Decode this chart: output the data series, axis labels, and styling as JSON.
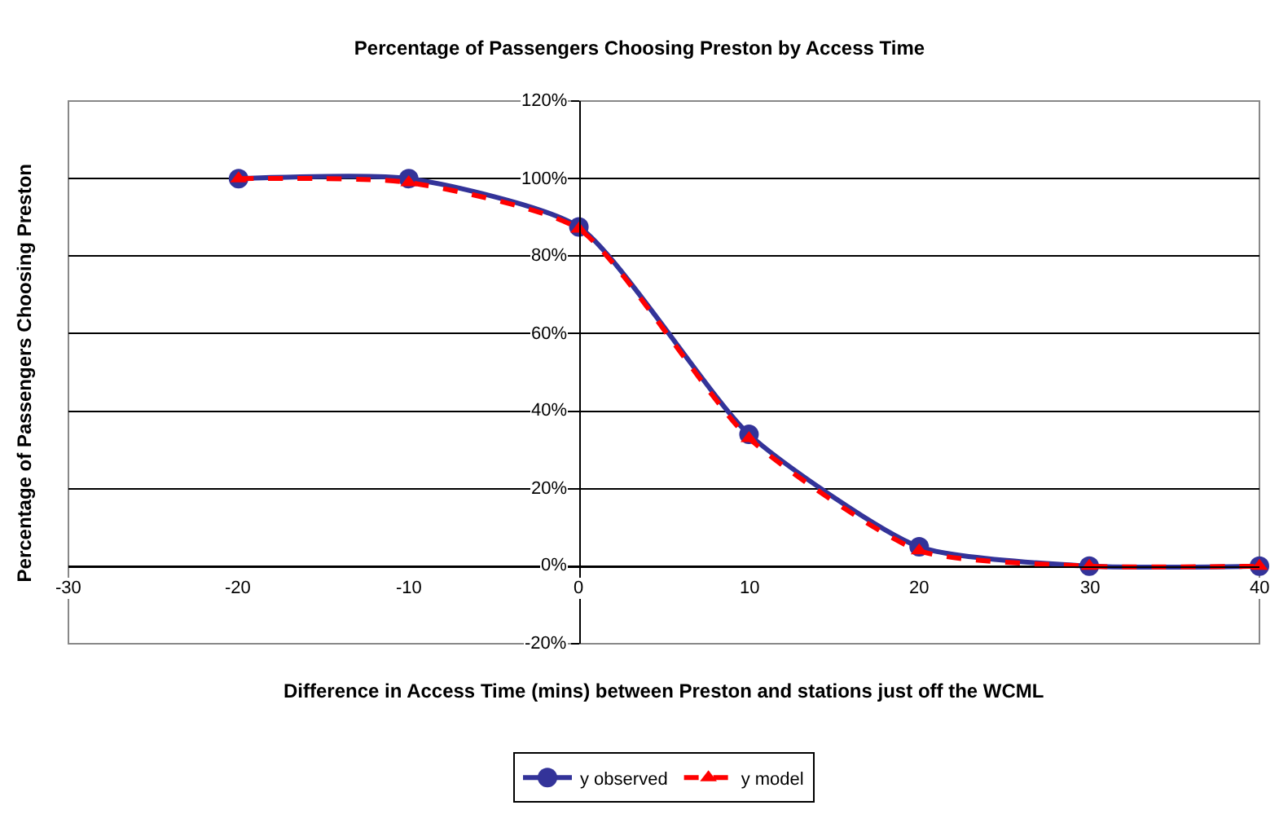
{
  "chart_data": {
    "type": "line",
    "title": "Percentage of Passengers Choosing Preston by Access Time",
    "xlabel": "Difference in Access Time (mins) between Preston and stations just off the WCML",
    "ylabel": "Percentage of Passengers Choosing Preston",
    "x": [
      -20,
      -10,
      0,
      10,
      20,
      30,
      40
    ],
    "series": [
      {
        "name": "y observed",
        "color": "#333399",
        "marker": "circle",
        "line_style": "solid",
        "values": [
          100,
          100,
          87.5,
          34,
          5,
          0,
          0
        ]
      },
      {
        "name": "y model",
        "color": "#ff0000",
        "marker": "triangle",
        "line_style": "dashed",
        "values": [
          100,
          99,
          87,
          33,
          4,
          0,
          0
        ]
      }
    ],
    "xlim": [
      -30,
      40
    ],
    "xticks": [
      -30,
      -20,
      -10,
      0,
      10,
      20,
      30,
      40
    ],
    "ylim": [
      -20,
      120
    ],
    "yticks": [
      {
        "value": -20,
        "label": "-20%"
      },
      {
        "value": 0,
        "label": "0%"
      },
      {
        "value": 20,
        "label": "20%"
      },
      {
        "value": 40,
        "label": "40%"
      },
      {
        "value": 60,
        "label": "60%"
      },
      {
        "value": 80,
        "label": "80%"
      },
      {
        "value": 100,
        "label": "100%"
      },
      {
        "value": 120,
        "label": "120%"
      }
    ],
    "grid": "y",
    "legend": "bottom"
  }
}
